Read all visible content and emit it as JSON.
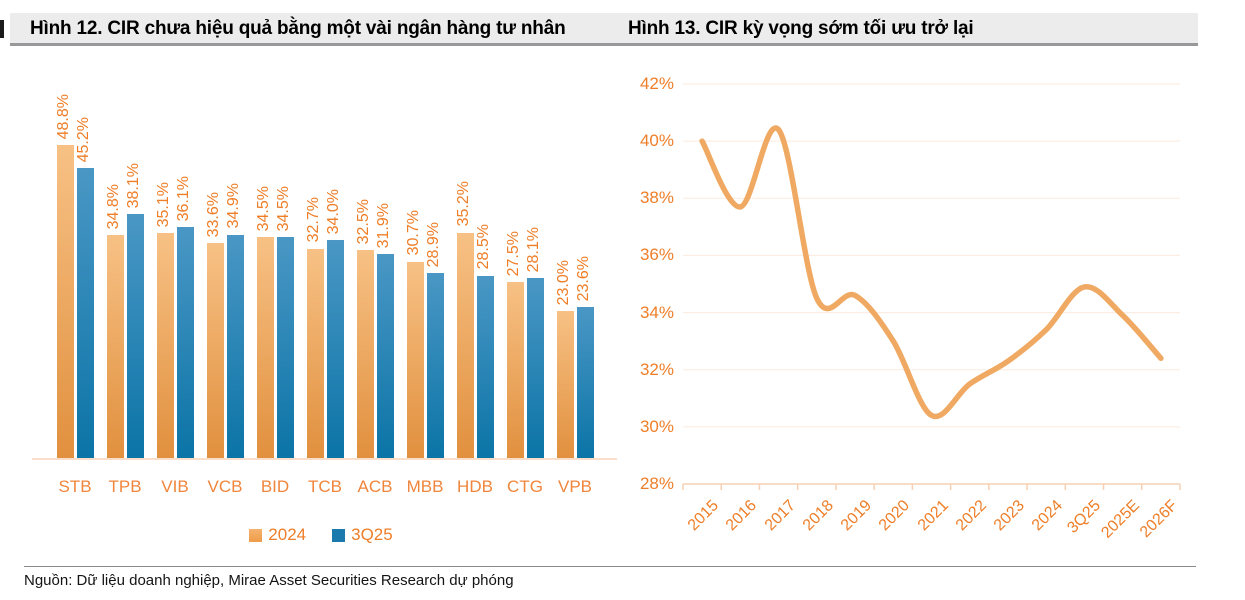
{
  "header": {
    "left_title": "Hình 12. CIR chưa hiệu quả bằng một vài ngân hàng tư nhân",
    "right_title": "Hình 13. CIR kỳ vọng sớm tối ưu trở lại"
  },
  "footer": {
    "source": "Nguồn: Dữ liệu doanh nghiệp, Mirae Asset Securities Research dự phóng"
  },
  "colors": {
    "orange_text": "#EE7E28",
    "orange_text2": "#F0853C",
    "bar_orange_top": "#F7C185",
    "bar_orange_bottom": "#E1903E",
    "bar_blue_top": "#4A97C5",
    "bar_blue_bottom": "#0B74A6",
    "line_color": "#F0A962",
    "gridline": "#FCEADD",
    "axis_strong": "#F7D0B3",
    "axis_line": "#FBDEC9",
    "title_bg": "#ECECEC",
    "title_border": "#98989A"
  },
  "chart_data": [
    {
      "type": "bar",
      "title": "Hình 12. CIR chưa hiệu quả bằng một vài ngân hàng tư nhân",
      "categories": [
        "STB",
        "TPB",
        "VIB",
        "VCB",
        "BID",
        "TCB",
        "ACB",
        "MBB",
        "HDB",
        "CTG",
        "VPB"
      ],
      "series": [
        {
          "name": "2024",
          "values": [
            48.8,
            34.8,
            35.1,
            33.6,
            34.5,
            32.7,
            32.5,
            30.7,
            35.2,
            27.5,
            23.0
          ]
        },
        {
          "name": "3Q25",
          "values": [
            45.2,
            38.1,
            36.1,
            34.9,
            34.5,
            34.0,
            31.9,
            28.9,
            28.5,
            28.1,
            23.6
          ]
        }
      ],
      "value_suffix": "%",
      "ylim": [
        0,
        52
      ],
      "data_labels": true,
      "legend_position": "bottom"
    },
    {
      "type": "line",
      "title": "Hình 13. CIR kỳ vọng sớm tối ưu trở lại",
      "x": [
        "2015",
        "2016",
        "2017",
        "2018",
        "2019",
        "2020",
        "2021",
        "2022",
        "2023",
        "2024",
        "3Q25",
        "2025E",
        "2026F"
      ],
      "values": [
        40.0,
        37.7,
        40.4,
        34.5,
        34.6,
        33.0,
        30.4,
        31.5,
        32.3,
        33.4,
        34.9,
        33.9,
        32.4
      ],
      "ylim": [
        28,
        42
      ],
      "ytick_step": 2,
      "ytick_suffix": "%",
      "grid": true,
      "legend_position": "none"
    }
  ]
}
